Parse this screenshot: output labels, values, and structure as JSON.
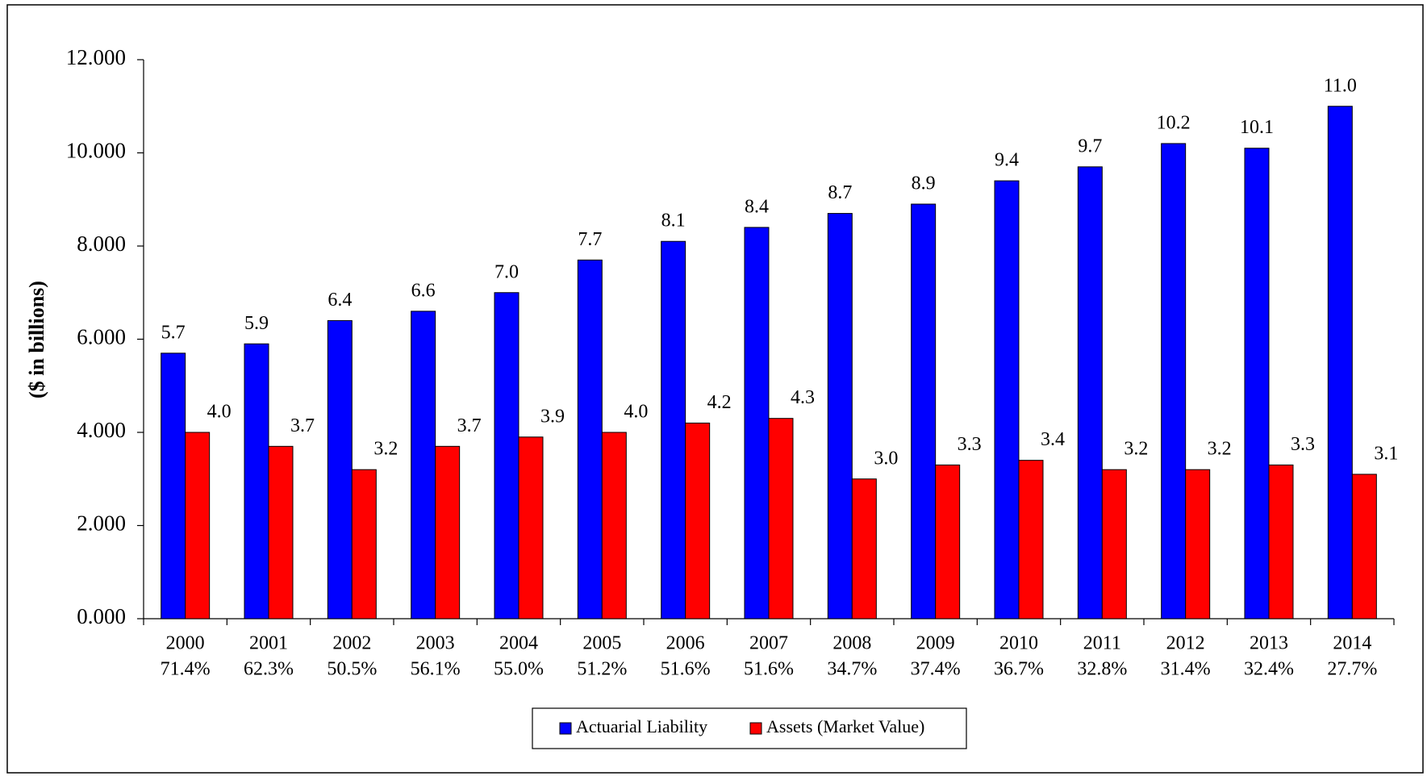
{
  "chart_data": {
    "type": "bar",
    "y_label": "($ in billions)",
    "categories": [
      "2000",
      "2001",
      "2002",
      "2003",
      "2004",
      "2005",
      "2006",
      "2007",
      "2008",
      "2009",
      "2010",
      "2011",
      "2012",
      "2013",
      "2014"
    ],
    "category_sublabels": [
      "71.4%",
      "62.3%",
      "50.5%",
      "56.1%",
      "55.0%",
      "51.2%",
      "51.6%",
      "51.6%",
      "34.7%",
      "37.4%",
      "36.7%",
      "32.8%",
      "31.4%",
      "32.4%",
      "27.7%"
    ],
    "series": [
      {
        "name": "Actuarial Liability",
        "color": "#0000ff",
        "values": [
          5.7,
          5.9,
          6.4,
          6.6,
          7.0,
          7.7,
          8.1,
          8.4,
          8.7,
          8.9,
          9.4,
          9.7,
          10.2,
          10.1,
          11.0
        ],
        "value_labels": [
          "5.7",
          "5.9",
          "6.4",
          "6.6",
          "7.0",
          "7.7",
          "8.1",
          "8.4",
          "8.7",
          "8.9",
          "9.4",
          "9.7",
          "10.2",
          "10.1",
          "11.0"
        ]
      },
      {
        "name": "Assets (Market Value)",
        "color": "#ff0000",
        "values": [
          4.0,
          3.7,
          3.2,
          3.7,
          3.9,
          4.0,
          4.2,
          4.3,
          3.0,
          3.3,
          3.4,
          3.2,
          3.2,
          3.3,
          3.1
        ],
        "value_labels": [
          "4.0",
          "3.7",
          "3.2",
          "3.7",
          "3.9",
          "4.0",
          "4.2",
          "4.3",
          "3.0",
          "3.3",
          "3.4",
          "3.2",
          "3.2",
          "3.3",
          "3.1"
        ]
      }
    ],
    "ylim": [
      0,
      12
    ],
    "yticks": [
      {
        "value": 0,
        "label": "0.000"
      },
      {
        "value": 2,
        "label": "2.000"
      },
      {
        "value": 4,
        "label": "4.000"
      },
      {
        "value": 6,
        "label": "6.000"
      },
      {
        "value": 8,
        "label": "8.000"
      },
      {
        "value": 10,
        "label": "10.000"
      },
      {
        "value": 12,
        "label": "12.000"
      }
    ],
    "grid": false,
    "legend": "bottom"
  }
}
